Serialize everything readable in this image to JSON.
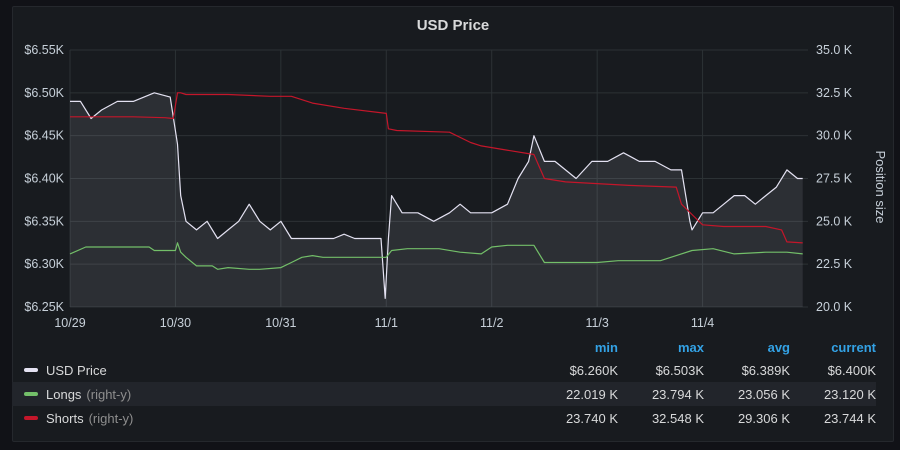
{
  "panel": {
    "title": "USD Price"
  },
  "colors": {
    "usd": "#e4e2f2",
    "longs": "#73bf69",
    "shorts": "#c4162a",
    "grid": "#2c3235",
    "accent": "#33a2e5"
  },
  "legend": {
    "headers": {
      "min": "min",
      "max": "max",
      "avg": "avg",
      "current": "current"
    },
    "rows": [
      {
        "name": "USD Price",
        "axis": "",
        "min": "$6.260K",
        "max": "$6.503K",
        "avg": "$6.389K",
        "current": "$6.400K"
      },
      {
        "name": "Longs",
        "axis": "(right-y)",
        "min": "22.019 K",
        "max": "23.794 K",
        "avg": "23.056 K",
        "current": "23.120 K"
      },
      {
        "name": "Shorts",
        "axis": "(right-y)",
        "min": "23.740 K",
        "max": "32.548 K",
        "avg": "29.306 K",
        "current": "23.744 K"
      }
    ]
  },
  "chart_data": {
    "type": "line",
    "title": "USD Price",
    "x_ticks": [
      "10/29",
      "10/30",
      "10/31",
      "11/1",
      "11/2",
      "11/3",
      "11/4"
    ],
    "xlim": [
      0,
      7
    ],
    "y_left": {
      "label": "",
      "ylim": [
        6.25,
        6.55
      ],
      "ticks": [
        "$6.25K",
        "$6.30K",
        "$6.35K",
        "$6.40K",
        "$6.45K",
        "$6.50K",
        "$6.55K"
      ]
    },
    "y_right": {
      "label": "Position size",
      "ylim": [
        20.0,
        35.0
      ],
      "ticks": [
        "20.0 K",
        "22.5 K",
        "25.0 K",
        "27.5 K",
        "30.0 K",
        "32.5 K",
        "35.0 K"
      ]
    },
    "series": [
      {
        "name": "USD Price",
        "axis": "left",
        "points": [
          [
            0,
            6.49
          ],
          [
            0.1,
            6.49
          ],
          [
            0.2,
            6.47
          ],
          [
            0.3,
            6.48
          ],
          [
            0.45,
            6.49
          ],
          [
            0.6,
            6.49
          ],
          [
            0.8,
            6.5
          ],
          [
            0.95,
            6.495
          ],
          [
            1.02,
            6.44
          ],
          [
            1.05,
            6.38
          ],
          [
            1.1,
            6.35
          ],
          [
            1.2,
            6.34
          ],
          [
            1.3,
            6.35
          ],
          [
            1.4,
            6.33
          ],
          [
            1.5,
            6.34
          ],
          [
            1.6,
            6.35
          ],
          [
            1.7,
            6.37
          ],
          [
            1.8,
            6.35
          ],
          [
            1.9,
            6.34
          ],
          [
            2.0,
            6.35
          ],
          [
            2.1,
            6.33
          ],
          [
            2.2,
            6.33
          ],
          [
            2.3,
            6.33
          ],
          [
            2.4,
            6.33
          ],
          [
            2.5,
            6.33
          ],
          [
            2.6,
            6.335
          ],
          [
            2.7,
            6.33
          ],
          [
            2.8,
            6.33
          ],
          [
            2.95,
            6.33
          ],
          [
            2.99,
            6.26
          ],
          [
            3.02,
            6.33
          ],
          [
            3.05,
            6.38
          ],
          [
            3.15,
            6.36
          ],
          [
            3.3,
            6.36
          ],
          [
            3.45,
            6.35
          ],
          [
            3.6,
            6.36
          ],
          [
            3.7,
            6.37
          ],
          [
            3.8,
            6.36
          ],
          [
            4.0,
            6.36
          ],
          [
            4.15,
            6.37
          ],
          [
            4.25,
            6.4
          ],
          [
            4.35,
            6.42
          ],
          [
            4.4,
            6.45
          ],
          [
            4.5,
            6.42
          ],
          [
            4.6,
            6.42
          ],
          [
            4.7,
            6.41
          ],
          [
            4.8,
            6.4
          ],
          [
            4.95,
            6.42
          ],
          [
            5.1,
            6.42
          ],
          [
            5.25,
            6.43
          ],
          [
            5.4,
            6.42
          ],
          [
            5.55,
            6.42
          ],
          [
            5.7,
            6.41
          ],
          [
            5.8,
            6.41
          ],
          [
            5.88,
            6.35
          ],
          [
            5.9,
            6.34
          ],
          [
            6.0,
            6.36
          ],
          [
            6.1,
            6.36
          ],
          [
            6.2,
            6.37
          ],
          [
            6.3,
            6.38
          ],
          [
            6.4,
            6.38
          ],
          [
            6.5,
            6.37
          ],
          [
            6.6,
            6.38
          ],
          [
            6.7,
            6.39
          ],
          [
            6.8,
            6.41
          ],
          [
            6.9,
            6.4
          ],
          [
            6.95,
            6.4
          ]
        ]
      },
      {
        "name": "Longs",
        "axis": "right",
        "points": [
          [
            0,
            23.1
          ],
          [
            0.15,
            23.5
          ],
          [
            0.5,
            23.5
          ],
          [
            0.75,
            23.5
          ],
          [
            0.8,
            23.3
          ],
          [
            1.0,
            23.3
          ],
          [
            1.02,
            23.75
          ],
          [
            1.05,
            23.2
          ],
          [
            1.1,
            22.9
          ],
          [
            1.2,
            22.4
          ],
          [
            1.35,
            22.4
          ],
          [
            1.4,
            22.2
          ],
          [
            1.5,
            22.3
          ],
          [
            1.7,
            22.2
          ],
          [
            1.8,
            22.2
          ],
          [
            2.0,
            22.3
          ],
          [
            2.1,
            22.6
          ],
          [
            2.2,
            22.9
          ],
          [
            2.3,
            23.0
          ],
          [
            2.4,
            22.9
          ],
          [
            2.5,
            22.9
          ],
          [
            2.6,
            22.9
          ],
          [
            3.0,
            22.9
          ],
          [
            3.05,
            23.3
          ],
          [
            3.2,
            23.4
          ],
          [
            3.5,
            23.4
          ],
          [
            3.7,
            23.2
          ],
          [
            3.9,
            23.1
          ],
          [
            4.0,
            23.5
          ],
          [
            4.15,
            23.6
          ],
          [
            4.4,
            23.6
          ],
          [
            4.5,
            22.6
          ],
          [
            4.6,
            22.6
          ],
          [
            5.0,
            22.6
          ],
          [
            5.2,
            22.7
          ],
          [
            5.6,
            22.7
          ],
          [
            5.9,
            23.3
          ],
          [
            6.1,
            23.4
          ],
          [
            6.3,
            23.1
          ],
          [
            6.6,
            23.2
          ],
          [
            6.8,
            23.2
          ],
          [
            6.95,
            23.1
          ]
        ]
      },
      {
        "name": "Shorts",
        "axis": "right",
        "points": [
          [
            0,
            31.1
          ],
          [
            0.6,
            31.1
          ],
          [
            0.9,
            31.05
          ],
          [
            0.98,
            31.0
          ],
          [
            1.02,
            32.5
          ],
          [
            1.05,
            32.5
          ],
          [
            1.1,
            32.4
          ],
          [
            1.5,
            32.4
          ],
          [
            1.9,
            32.3
          ],
          [
            2.1,
            32.3
          ],
          [
            2.3,
            31.9
          ],
          [
            2.6,
            31.6
          ],
          [
            3.0,
            31.3
          ],
          [
            3.02,
            30.4
          ],
          [
            3.1,
            30.3
          ],
          [
            3.6,
            30.2
          ],
          [
            3.8,
            29.6
          ],
          [
            3.9,
            29.4
          ],
          [
            4.1,
            29.2
          ],
          [
            4.4,
            28.9
          ],
          [
            4.5,
            27.5
          ],
          [
            4.7,
            27.3
          ],
          [
            5.0,
            27.2
          ],
          [
            5.3,
            27.1
          ],
          [
            5.75,
            27.0
          ],
          [
            5.8,
            26.0
          ],
          [
            5.9,
            25.4
          ],
          [
            6.0,
            24.8
          ],
          [
            6.2,
            24.7
          ],
          [
            6.6,
            24.7
          ],
          [
            6.75,
            24.5
          ],
          [
            6.8,
            23.8
          ],
          [
            6.95,
            23.74
          ]
        ]
      }
    ]
  }
}
